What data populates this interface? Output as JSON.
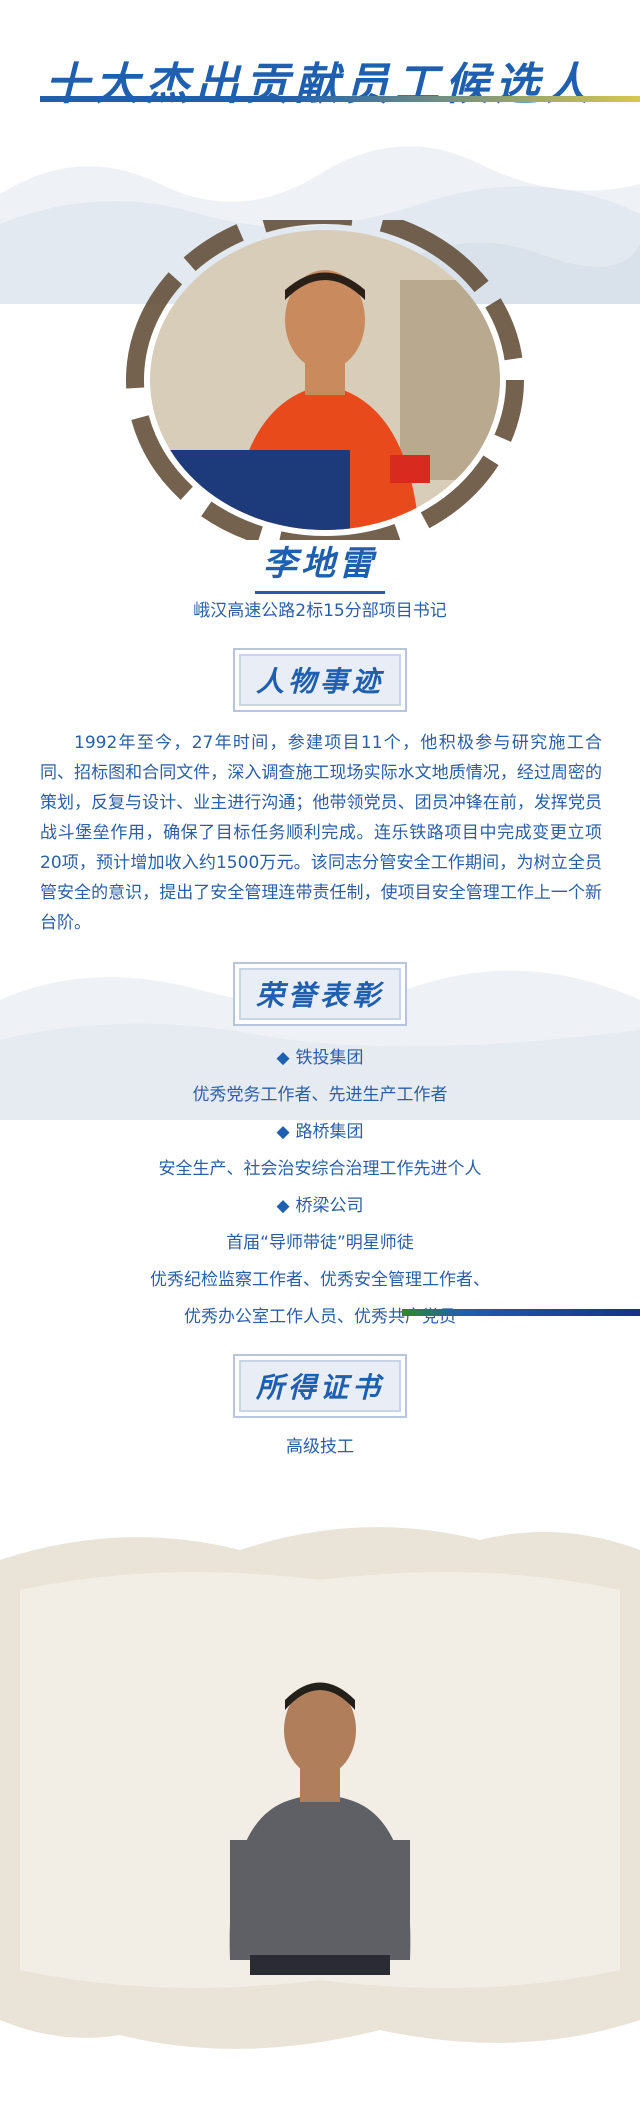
{
  "header": {
    "title": "十大杰出贡献员工候选人"
  },
  "person": {
    "name": "李地雷",
    "position": "峨汉高速公路2标15分部项目书记"
  },
  "sections": {
    "story_label": "人物事迹",
    "honors_label": "荣誉表彰",
    "certificates_label": "所得证书"
  },
  "story": {
    "text": "1992年至今，27年时间，参建项目11个，他积极参与研究施工合同、招标图和合同文件，深入调查施工现场实际水文地质情况，经过周密的策划，反复与设计、业主进行沟通；他带领党员、团员冲锋在前，发挥党员战斗堡垒作用，确保了目标任务顺利完成。连乐铁路项目中完成变更立项20项，预计增加收入约1500万元。该同志分管安全工作期间，为树立全员管安全的意识，提出了安全管理连带责任制，使项目安全管理工作上一个新台阶。"
  },
  "honors": [
    {
      "org": "铁投集团",
      "items": "优秀党务工作者、先进生产工作者"
    },
    {
      "org": "路桥集团",
      "items": "安全生产、社会治安综合治理工作先进个人"
    },
    {
      "org": "桥梁公司",
      "items_line1": "首届“导师带徒”明星师徒",
      "items_line2": "优秀纪检监察工作者、优秀安全管理工作者、",
      "items_line3": "优秀办公室工作人员、优秀共产党员"
    }
  ],
  "certificates": {
    "text": "高级技工"
  },
  "colors": {
    "accent": "#1e5fb0",
    "text": "#2a5fa8",
    "label_bg": "#e9eef6"
  },
  "icons": {
    "bullet": "diamond-icon"
  }
}
